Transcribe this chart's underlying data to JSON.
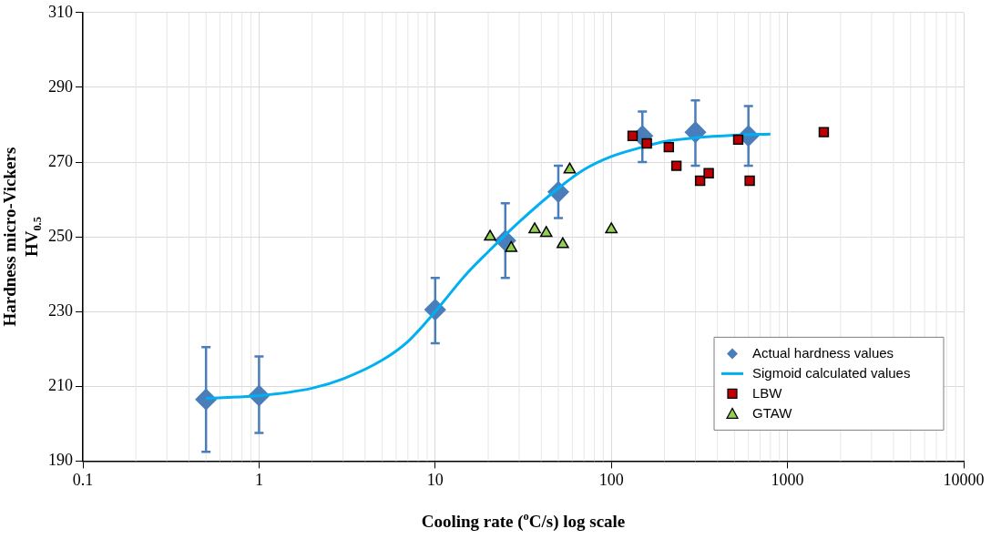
{
  "chart_data": {
    "type": "scatter",
    "xlabel": "Cooling rate ($^{o}$C/s) log scale",
    "ylabel": "Hardness micro-Vickers HV$_{0.5}$",
    "log": "x",
    "xlim": [
      0.1,
      10000
    ],
    "xticks": [
      0.1,
      1,
      10,
      100,
      1000,
      10000
    ],
    "ylim": [
      190,
      310
    ],
    "yticks": [
      190,
      210,
      230,
      250,
      270,
      290,
      310
    ],
    "grid": true,
    "legend": "bottom right",
    "series": [
      {
        "name": "Actual hardness values",
        "marker": "diamond",
        "color": "#4a7ebb",
        "x": [
          0.5,
          1,
          10,
          25,
          50,
          150,
          300,
          600
        ],
        "values": [
          206.5,
          207.5,
          230.5,
          249,
          262,
          277,
          278,
          277
        ],
        "errors": [
          [
            192.5,
            220.5
          ],
          [
            197.5,
            218
          ],
          [
            221.5,
            239
          ],
          [
            239,
            259
          ],
          [
            255,
            269
          ],
          [
            270,
            283.5
          ],
          [
            269,
            286.5
          ],
          [
            269,
            285
          ]
        ]
      },
      {
        "name": "Sigmoid calculated values",
        "type": "line",
        "marker": "none",
        "color": "#00b0f0",
        "x": [
          0.5,
          1,
          2,
          3,
          5,
          7,
          10,
          15,
          20,
          30,
          50,
          70,
          100,
          150,
          200,
          300,
          500,
          800
        ],
        "values": [
          206.8,
          207.5,
          209.5,
          212,
          217,
          222,
          230,
          240,
          246,
          254,
          263,
          268,
          271.5,
          274,
          275.5,
          276.5,
          277.2,
          277.5
        ]
      },
      {
        "name": "LBW",
        "marker": "square",
        "color": "#c00000",
        "x": [
          132,
          159,
          212,
          234,
          319,
          357,
          525,
          610,
          1607
        ],
        "values": [
          277,
          275,
          274,
          269,
          265,
          267,
          276,
          265,
          278
        ]
      },
      {
        "name": "GTAW",
        "marker": "triangle",
        "color": "#92d050",
        "x": [
          20.5,
          27,
          36.7,
          42.7,
          53,
          58,
          100
        ],
        "values": [
          250,
          247,
          252,
          251,
          248,
          268,
          252
        ]
      }
    ]
  }
}
